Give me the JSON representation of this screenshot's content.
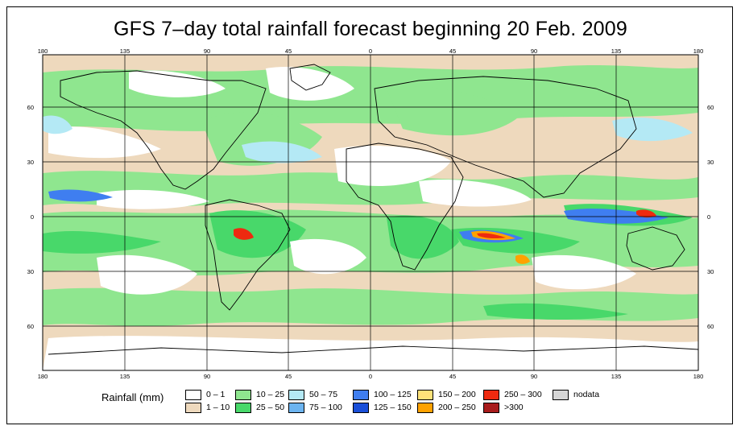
{
  "title": "GFS 7–day total rainfall forecast beginning 20 Feb. 2009",
  "longitude_ticks": [
    "180",
    "135",
    "90",
    "45",
    "0",
    "45",
    "90",
    "135",
    "180"
  ],
  "latitude_ticks": [
    "60",
    "30",
    "0",
    "30",
    "60"
  ],
  "legend": {
    "label": "Rainfall (mm)",
    "entries": [
      {
        "range": "0 – 1",
        "color": "#ffffff"
      },
      {
        "range": "1 – 10",
        "color": "#eed9bd"
      },
      {
        "range": "10 – 25",
        "color": "#8fe68f"
      },
      {
        "range": "25 – 50",
        "color": "#48d86a"
      },
      {
        "range": "50 – 75",
        "color": "#b4e9f5"
      },
      {
        "range": "75 – 100",
        "color": "#6cb4f0"
      },
      {
        "range": "100 – 125",
        "color": "#3f7ef0"
      },
      {
        "range": "125 – 150",
        "color": "#1a4fd8"
      },
      {
        "range": "150 – 200",
        "color": "#ffe27a"
      },
      {
        "range": "200 – 250",
        "color": "#ffa200"
      },
      {
        "range": "250 – 300",
        "color": "#ee2a10"
      },
      {
        "range": ">300",
        "color": "#a81c1c"
      },
      {
        "range": "nodata",
        "color": "#d6d6d6"
      }
    ]
  }
}
